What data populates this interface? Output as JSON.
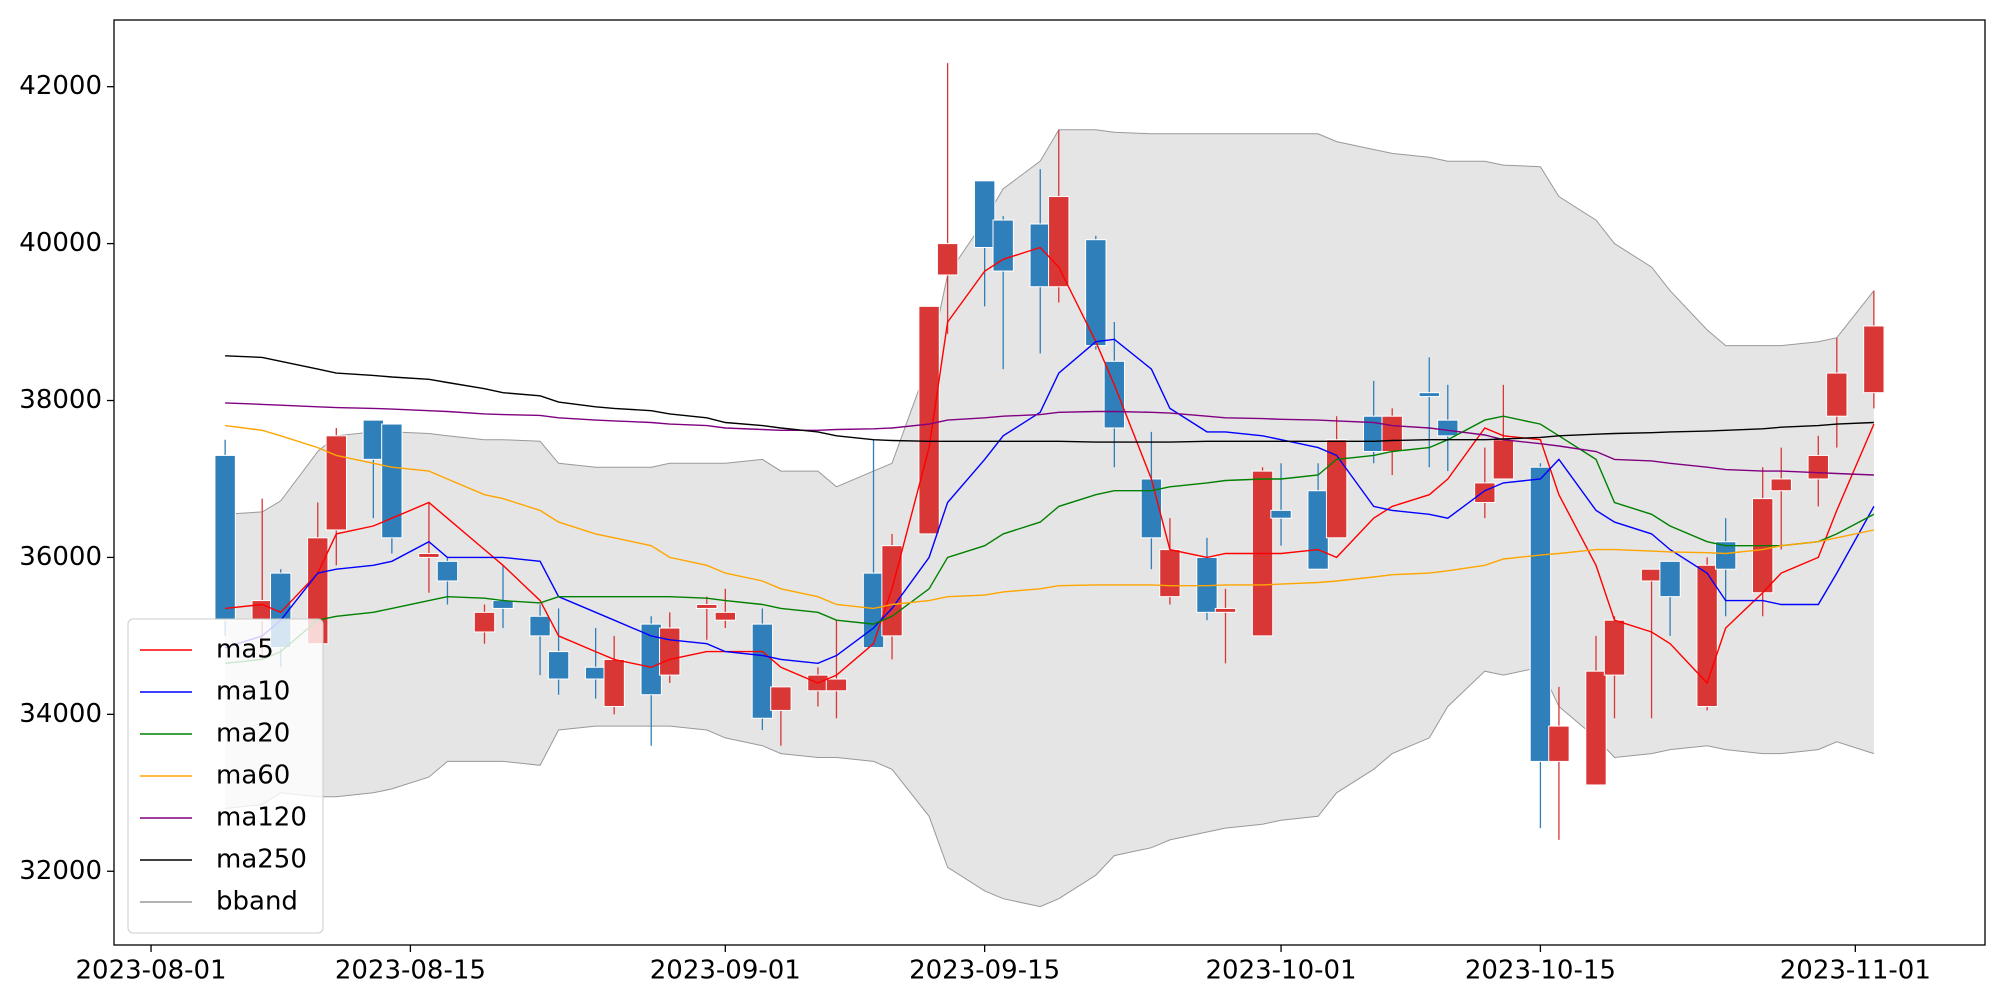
{
  "chart_data": {
    "type": "candlestick",
    "x": [
      "2023-08-05",
      "2023-08-07",
      "2023-08-08",
      "2023-08-10",
      "2023-08-11",
      "2023-08-13",
      "2023-08-14",
      "2023-08-16",
      "2023-08-17",
      "2023-08-19",
      "2023-08-20",
      "2023-08-22",
      "2023-08-23",
      "2023-08-25",
      "2023-08-26",
      "2023-08-28",
      "2023-08-29",
      "2023-08-31",
      "2023-09-01",
      "2023-09-03",
      "2023-09-04",
      "2023-09-06",
      "2023-09-07",
      "2023-09-09",
      "2023-09-10",
      "2023-09-12",
      "2023-09-13",
      "2023-09-15",
      "2023-09-16",
      "2023-09-18",
      "2023-09-19",
      "2023-09-21",
      "2023-09-22",
      "2023-09-24",
      "2023-09-25",
      "2023-09-27",
      "2023-09-28",
      "2023-09-30",
      "2023-10-01",
      "2023-10-03",
      "2023-10-04",
      "2023-10-06",
      "2023-10-07",
      "2023-10-09",
      "2023-10-10",
      "2023-10-12",
      "2023-10-13",
      "2023-10-15",
      "2023-10-16",
      "2023-10-18",
      "2023-10-19",
      "2023-10-21",
      "2023-10-22",
      "2023-10-24",
      "2023-10-25",
      "2023-10-27",
      "2023-10-28",
      "2023-10-30",
      "2023-10-31",
      "2023-11-02"
    ],
    "open": [
      37300,
      35200,
      35800,
      34900,
      36350,
      37750,
      37700,
      36000,
      35950,
      35050,
      35450,
      35250,
      34800,
      34600,
      34100,
      35150,
      34500,
      35350,
      35200,
      35150,
      34050,
      34300,
      34300,
      35800,
      35000,
      36300,
      39600,
      40800,
      40300,
      40250,
      39450,
      40050,
      38500,
      37000,
      35500,
      36000,
      35300,
      35000,
      36600,
      36850,
      36250,
      37800,
      37350,
      38100,
      37750,
      36700,
      37000,
      37150,
      33400,
      33100,
      34500,
      35700,
      35950,
      34100,
      36200,
      35550,
      36850,
      37000,
      37800,
      38100
    ],
    "high": [
      37500,
      36750,
      35850,
      36700,
      37650,
      37750,
      37700,
      36700,
      36000,
      35400,
      35900,
      35400,
      35350,
      35100,
      35000,
      35250,
      35300,
      35500,
      35600,
      35350,
      34350,
      34600,
      35200,
      37500,
      36300,
      39200,
      42300,
      40800,
      40350,
      40950,
      41450,
      40100,
      39000,
      37600,
      36500,
      36250,
      35600,
      37150,
      37200,
      37200,
      37800,
      38250,
      37900,
      38550,
      38200,
      37400,
      38200,
      37200,
      34350,
      35000,
      35250,
      35850,
      35950,
      36000,
      36500,
      37150,
      37400,
      37550,
      38800,
      39400
    ],
    "low": [
      35000,
      34700,
      34600,
      34900,
      35900,
      36500,
      36050,
      35550,
      35400,
      34900,
      35100,
      34500,
      34250,
      34200,
      34000,
      33600,
      34400,
      34950,
      35100,
      33800,
      33600,
      34100,
      33950,
      34850,
      34700,
      36300,
      38850,
      39200,
      38400,
      38600,
      39250,
      38650,
      37150,
      35850,
      35400,
      35200,
      34650,
      35000,
      36150,
      35850,
      36250,
      37200,
      37050,
      37150,
      37100,
      36500,
      37000,
      32550,
      32400,
      33100,
      33950,
      33950,
      35000,
      34050,
      35250,
      35250,
      36100,
      36650,
      37400,
      37900
    ],
    "close": [
      35200,
      35450,
      34850,
      36250,
      37550,
      37250,
      36250,
      36050,
      35700,
      35300,
      35350,
      35000,
      34450,
      34450,
      34700,
      34250,
      35100,
      35400,
      35300,
      33950,
      34350,
      34500,
      34450,
      34850,
      36150,
      39200,
      40000,
      39950,
      39650,
      39450,
      40600,
      38700,
      37650,
      36250,
      36100,
      35300,
      35350,
      37100,
      36500,
      35850,
      37500,
      37350,
      37800,
      38050,
      37550,
      36950,
      37500,
      33400,
      33850,
      34550,
      35200,
      35850,
      35500,
      35900,
      35850,
      36750,
      37000,
      37300,
      38350,
      38950
    ],
    "up_color": "#d93636",
    "down_color": "#2f7fba",
    "series": [
      {
        "name": "ma5",
        "color": "#ff0000",
        "values": [
          35350,
          35400,
          35300,
          35800,
          36300,
          36400,
          36500,
          36700,
          36500,
          36100,
          35900,
          35450,
          35000,
          34800,
          34700,
          34600,
          34700,
          34800,
          34800,
          34800,
          34600,
          34400,
          34500,
          34900,
          35600,
          37400,
          39000,
          39650,
          39800,
          39950,
          39700,
          38750,
          38200,
          37000,
          36100,
          36000,
          36050,
          36050,
          36050,
          36100,
          36000,
          36500,
          36650,
          36800,
          37000,
          37650,
          37550,
          37500,
          36800,
          35900,
          35200,
          35050,
          34900,
          34400,
          35100,
          35550,
          35800,
          36000,
          36600,
          37700
        ]
      },
      {
        "name": "ma10",
        "color": "#0000ff",
        "values": [
          34850,
          35000,
          35200,
          35800,
          35850,
          35900,
          35950,
          36200,
          36000,
          36000,
          36000,
          35950,
          35500,
          35300,
          35200,
          35000,
          34950,
          34900,
          34800,
          34750,
          34700,
          34650,
          34750,
          35100,
          35350,
          36000,
          36700,
          37250,
          37550,
          37850,
          38350,
          38750,
          38780,
          38400,
          37900,
          37600,
          37600,
          37550,
          37500,
          37400,
          37300,
          36650,
          36600,
          36550,
          36500,
          36850,
          36950,
          37000,
          37250,
          36600,
          36450,
          36300,
          36100,
          35800,
          35450,
          35450,
          35400,
          35400,
          35800,
          36650
        ]
      },
      {
        "name": "ma20",
        "color": "#008000",
        "values": [
          34650,
          34700,
          34800,
          35200,
          35250,
          35300,
          35350,
          35450,
          35500,
          35480,
          35450,
          35420,
          35500,
          35500,
          35500,
          35500,
          35500,
          35480,
          35450,
          35400,
          35350,
          35300,
          35200,
          35150,
          35250,
          35600,
          36000,
          36150,
          36300,
          36450,
          36650,
          36800,
          36850,
          36850,
          36900,
          36950,
          36980,
          37000,
          37000,
          37050,
          37250,
          37300,
          37350,
          37400,
          37500,
          37750,
          37800,
          37700,
          37550,
          37250,
          36700,
          36550,
          36400,
          36200,
          36150,
          36150,
          36150,
          36200,
          36300,
          36550
        ]
      },
      {
        "name": "ma60",
        "color": "#ffa500",
        "values": [
          37680,
          37620,
          37550,
          37400,
          37300,
          37200,
          37150,
          37100,
          37000,
          36800,
          36750,
          36600,
          36450,
          36300,
          36250,
          36150,
          36000,
          35900,
          35800,
          35700,
          35600,
          35500,
          35400,
          35350,
          35400,
          35450,
          35500,
          35520,
          35560,
          35600,
          35640,
          35650,
          35650,
          35650,
          35640,
          35640,
          35650,
          35650,
          35660,
          35680,
          35700,
          35750,
          35780,
          35800,
          35830,
          35900,
          35980,
          36030,
          36050,
          36100,
          36100,
          36080,
          36070,
          36060,
          36050,
          36100,
          36150,
          36200,
          36250,
          36350
        ]
      },
      {
        "name": "ma120",
        "color": "#800080",
        "values": [
          37970,
          37950,
          37940,
          37920,
          37910,
          37900,
          37890,
          37870,
          37860,
          37830,
          37820,
          37810,
          37780,
          37750,
          37740,
          37720,
          37700,
          37680,
          37650,
          37630,
          37620,
          37620,
          37630,
          37640,
          37650,
          37700,
          37750,
          37780,
          37800,
          37820,
          37850,
          37860,
          37860,
          37850,
          37840,
          37800,
          37780,
          37770,
          37760,
          37750,
          37740,
          37720,
          37680,
          37650,
          37620,
          37560,
          37500,
          37450,
          37420,
          37350,
          37250,
          37230,
          37200,
          37150,
          37120,
          37100,
          37100,
          37080,
          37070,
          37050
        ]
      },
      {
        "name": "ma250",
        "color": "#000000",
        "values": [
          38570,
          38550,
          38500,
          38400,
          38350,
          38320,
          38300,
          38270,
          38230,
          38150,
          38100,
          38060,
          37980,
          37920,
          37900,
          37870,
          37830,
          37780,
          37720,
          37680,
          37650,
          37600,
          37550,
          37500,
          37490,
          37480,
          37480,
          37480,
          37480,
          37480,
          37480,
          37470,
          37470,
          37470,
          37470,
          37480,
          37480,
          37480,
          37480,
          37480,
          37480,
          37480,
          37490,
          37500,
          37500,
          37500,
          37510,
          37530,
          37550,
          37570,
          37580,
          37590,
          37600,
          37610,
          37620,
          37640,
          37660,
          37680,
          37700,
          37720
        ]
      }
    ],
    "band": {
      "name": "bband",
      "color": "#999999",
      "fill": "#e5e5e5",
      "upper": [
        36550,
        36580,
        36720,
        37350,
        37550,
        37600,
        37600,
        37580,
        37550,
        37500,
        37500,
        37480,
        37200,
        37150,
        37150,
        37150,
        37200,
        37200,
        37200,
        37250,
        37100,
        37100,
        36900,
        37100,
        37200,
        38500,
        39600,
        40300,
        40700,
        41050,
        41450,
        41450,
        41420,
        41400,
        41400,
        41400,
        41400,
        41400,
        41400,
        41400,
        41300,
        41200,
        41150,
        41100,
        41050,
        41050,
        41000,
        40980,
        40600,
        40300,
        40000,
        39700,
        39400,
        38900,
        38700,
        38700,
        38700,
        38750,
        38800,
        39400
      ],
      "lower": [
        32800,
        32850,
        33000,
        32950,
        32950,
        33000,
        33050,
        33200,
        33400,
        33400,
        33400,
        33350,
        33800,
        33850,
        33850,
        33850,
        33850,
        33800,
        33700,
        33600,
        33500,
        33450,
        33450,
        33400,
        33300,
        32700,
        32050,
        31750,
        31650,
        31550,
        31650,
        31950,
        32200,
        32300,
        32400,
        32500,
        32550,
        32600,
        32650,
        32700,
        33000,
        33300,
        33500,
        33700,
        34100,
        34550,
        34500,
        34600,
        34100,
        33700,
        33450,
        33500,
        33550,
        33600,
        33550,
        33500,
        33500,
        33550,
        33650,
        33500
      ]
    },
    "xlim": [
      "2023-07-30",
      "2023-11-08"
    ],
    "ylim": [
      31060,
      42850
    ],
    "xticks": [
      "2023-08-01",
      "2023-08-15",
      "2023-09-01",
      "2023-09-15",
      "2023-10-01",
      "2023-10-15",
      "2023-11-01"
    ],
    "yticks": [
      32000,
      34000,
      36000,
      38000,
      40000,
      42000
    ],
    "legend": "lower left"
  }
}
